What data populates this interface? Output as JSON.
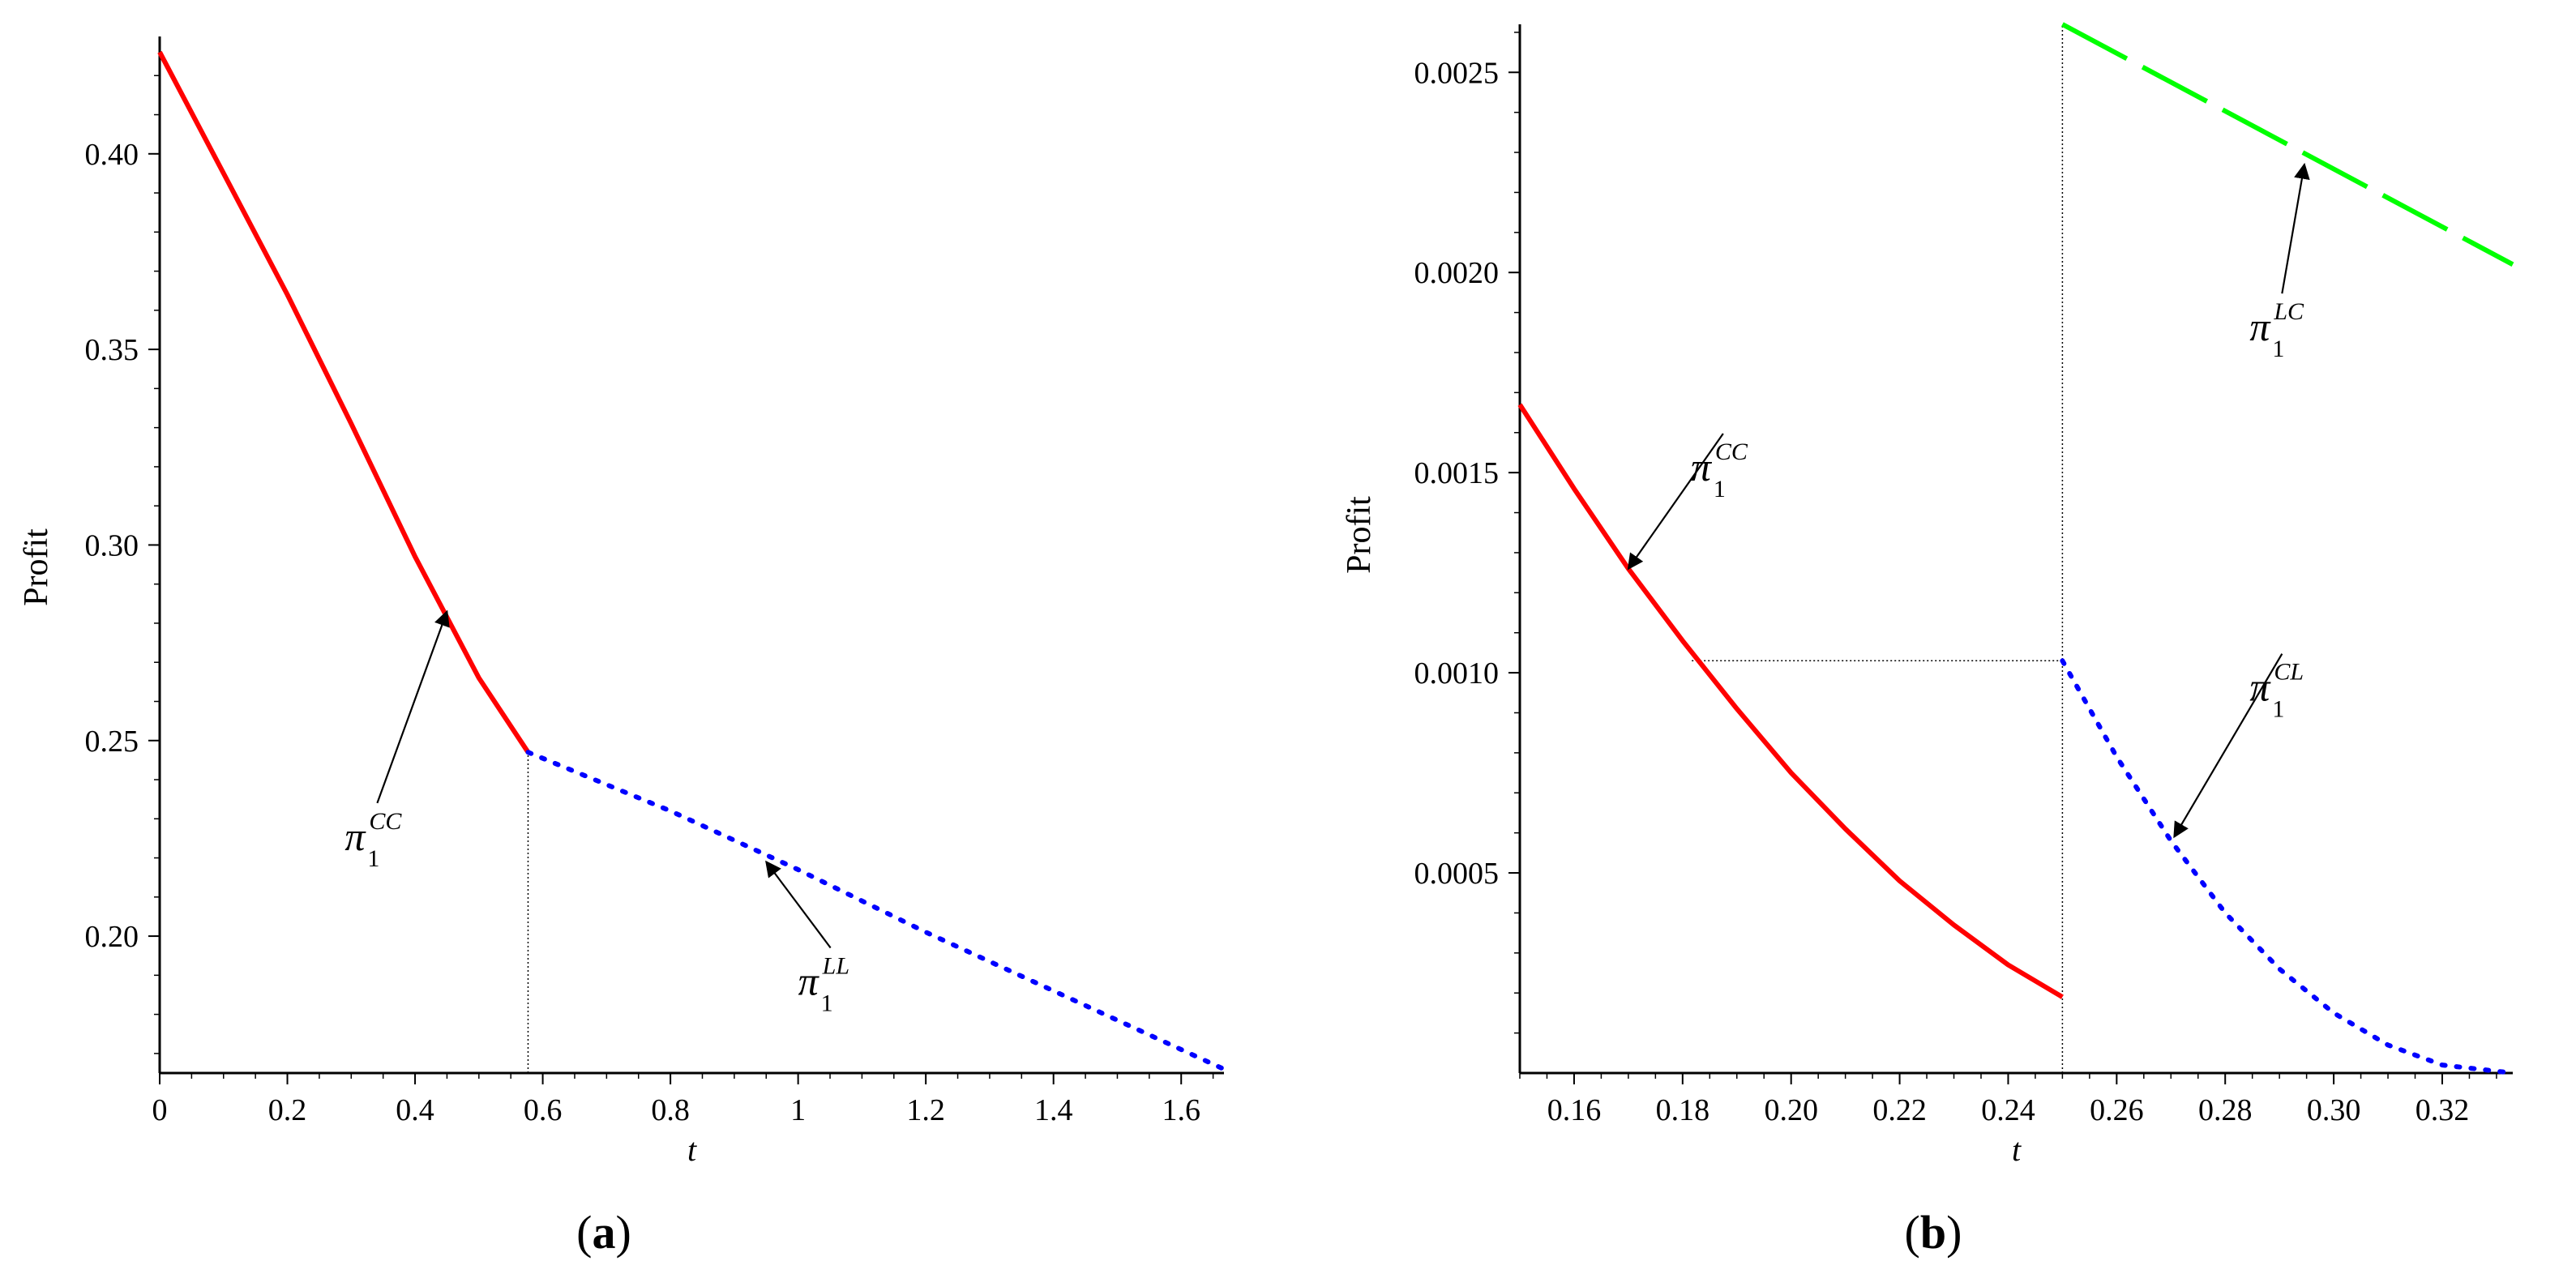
{
  "chart_data": [
    {
      "type": "line",
      "panel_label": {
        "open": "(",
        "letter": "a",
        "close": ")"
      },
      "xlabel": "t",
      "ylabel": "Profit",
      "xlim": [
        0,
        1.667
      ],
      "ylim": [
        0.165,
        0.43
      ],
      "x_ticks": [
        0,
        0.2,
        0.4,
        0.6,
        0.8,
        1,
        1.2,
        1.4,
        1.6
      ],
      "x_tick_labels": [
        "0",
        "0.2",
        "0.4",
        "0.6",
        "0.8",
        "1",
        "1.2",
        "1.4",
        "1.6"
      ],
      "y_ticks": [
        0.2,
        0.25,
        0.3,
        0.35,
        0.4
      ],
      "y_tick_labels": [
        "0.20",
        "0.25",
        "0.30",
        "0.35",
        "0.40"
      ],
      "series": [
        {
          "label_main": "π",
          "label_sub": "1",
          "label_sup": "CC",
          "color": "#ff0000",
          "dash": "solid",
          "x": [
            0,
            0.1,
            0.2,
            0.3,
            0.4,
            0.5,
            0.577
          ],
          "y": [
            0.426,
            0.395,
            0.364,
            0.331,
            0.297,
            0.266,
            0.247
          ]
        },
        {
          "label_main": "π",
          "label_sub": "1",
          "label_sup": "LL",
          "color": "#0000ff",
          "dash": "dotted",
          "x": [
            0.577,
            0.8,
            1.0,
            1.2,
            1.4,
            1.6,
            1.667
          ],
          "y": [
            0.247,
            0.232,
            0.217,
            0.201,
            0.186,
            0.171,
            0.166
          ]
        }
      ],
      "guides": [
        {
          "x": [
            0.577,
            0.577
          ],
          "y": [
            0.165,
            0.247
          ]
        }
      ],
      "annotations": [
        {
          "series": 0,
          "point": [
            0.45,
            0.283
          ],
          "text_at": [
            0.29,
            0.222
          ]
        },
        {
          "series": 1,
          "point": [
            0.95,
            0.219
          ],
          "text_at": [
            1.0,
            0.185
          ]
        }
      ]
    },
    {
      "type": "line",
      "panel_label": {
        "open": "(",
        "letter": "b",
        "close": ")"
      },
      "xlabel": "t",
      "ylabel": "Profit",
      "xlim": [
        0.15,
        0.333
      ],
      "ylim": [
        0,
        0.00262
      ],
      "x_ticks": [
        0.16,
        0.18,
        0.2,
        0.22,
        0.24,
        0.26,
        0.28,
        0.3,
        0.32
      ],
      "x_tick_labels": [
        "0.16",
        "0.18",
        "0.20",
        "0.22",
        "0.24",
        "0.26",
        "0.28",
        "0.30",
        "0.32"
      ],
      "y_ticks": [
        0.0005,
        0.001,
        0.0015,
        0.002,
        0.0025
      ],
      "y_tick_labels": [
        "0.0005",
        "0.0010",
        "0.0015",
        "0.0020",
        "0.0025"
      ],
      "series": [
        {
          "label_main": "π",
          "label_sub": "1",
          "label_sup": "CC",
          "color": "#ff0000",
          "dash": "solid",
          "x": [
            0.15,
            0.16,
            0.17,
            0.18,
            0.19,
            0.2,
            0.21,
            0.22,
            0.23,
            0.24,
            0.25
          ],
          "y": [
            0.00167,
            0.00146,
            0.00126,
            0.00108,
            0.00091,
            0.00075,
            0.00061,
            0.00048,
            0.00037,
            0.00027,
            0.00019
          ]
        },
        {
          "label_main": "π",
          "label_sub": "1",
          "label_sup": "CL",
          "color": "#0000ff",
          "dash": "dotted",
          "x": [
            0.25,
            0.26,
            0.27,
            0.28,
            0.29,
            0.3,
            0.31,
            0.32,
            0.333
          ],
          "y": [
            0.00103,
            0.00079,
            0.00058,
            0.0004,
            0.00026,
            0.00015,
            7e-05,
            2e-05,
            0.0
          ]
        },
        {
          "label_main": "π",
          "label_sub": "1",
          "label_sup": "LC",
          "color": "#00ff00",
          "dash": "dashed",
          "x": [
            0.25,
            0.333
          ],
          "y": [
            0.00262,
            0.00202
          ]
        }
      ],
      "guides": [
        {
          "x": [
            0.25,
            0.25
          ],
          "y": [
            0,
            0.00262
          ]
        },
        {
          "x": [
            0.1817,
            0.25
          ],
          "y": [
            0.00103,
            0.00103
          ]
        }
      ],
      "annotations": [
        {
          "series": 0,
          "point": [
            0.17,
            0.00126
          ],
          "text_at": [
            0.1815,
            0.00148
          ]
        },
        {
          "series": 1,
          "point": [
            0.2706,
            0.00059
          ],
          "text_at": [
            0.2845,
            0.00093
          ]
        },
        {
          "series": 2,
          "point": [
            0.2946,
            0.00227
          ],
          "text_at": [
            0.2845,
            0.00183
          ]
        }
      ]
    }
  ]
}
